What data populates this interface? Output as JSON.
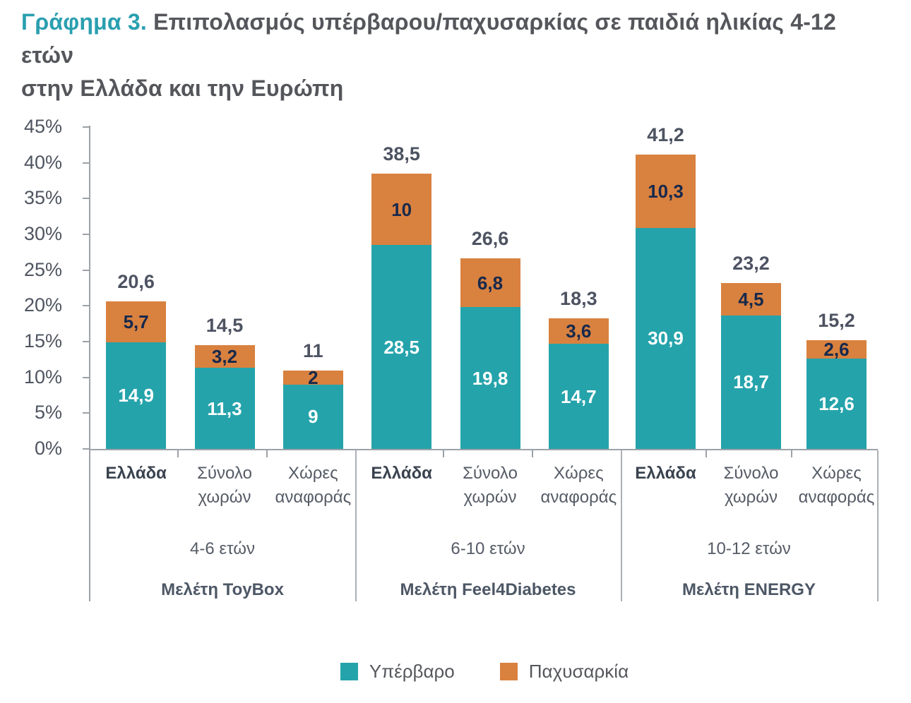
{
  "title": {
    "prefix": "Γράφημα 3.",
    "line1": "Επιπολασμός υπέρβαρου/παχυσαρκίας σε παιδιά ηλικίας 4-12 ετών",
    "line2": "στην Ελλάδα και την Ευρώπη"
  },
  "colors": {
    "overweight_teal": "#25a3ab",
    "obesity_orange": "#d9813f",
    "title_accent": "#2a9fb0",
    "title_text": "#54565b",
    "tick_text": "#4e5560",
    "total_label": "#4d5361",
    "label_on_orange": "#16294c",
    "label_on_teal": "#ffffff",
    "axis_gray": "#9ca2a8",
    "divider_gray": "#abb0b6"
  },
  "chart_data": {
    "type": "bar",
    "stacked": true,
    "title": "Γράφημα 3. Επιπολασμός υπέρβαρου/παχυσαρκίας σε παιδιά ηλικίας 4-12 ετών στην Ελλάδα και την Ευρώπη",
    "xlabel": "",
    "ylabel": "",
    "ylim": [
      0,
      45
    ],
    "y_ticks": [
      "0%",
      "5%",
      "10%",
      "15%",
      "20%",
      "25%",
      "30%",
      "35%",
      "40%",
      "45%"
    ],
    "grid": false,
    "legend_position": "bottom",
    "legend": [
      {
        "label": "Υπέρβαρο",
        "color": "#25a3ab"
      },
      {
        "label": "Παχυσαρκία",
        "color": "#d9813f"
      }
    ],
    "series_names": [
      "Υπέρβαρο",
      "Παχυσαρκία"
    ],
    "groups": [
      {
        "age": "4-6 ετών",
        "study": "Μελέτη ToyBox",
        "bars": [
          {
            "category": "Ελλάδα",
            "bold": true,
            "overweight": 14.9,
            "obesity": 5.7,
            "total": 20.6
          },
          {
            "category": "Σύνολο χωρών",
            "bold": false,
            "overweight": 11.3,
            "obesity": 3.2,
            "total": 14.5
          },
          {
            "category": "Χώρες αναφοράς",
            "bold": false,
            "overweight": 9,
            "obesity": 2,
            "total": 11
          }
        ]
      },
      {
        "age": "6-10 ετών",
        "study": "Μελέτη Feel4Diabetes",
        "bars": [
          {
            "category": "Ελλάδα",
            "bold": true,
            "overweight": 28.5,
            "obesity": 10,
            "total": 38.5
          },
          {
            "category": "Σύνολο χωρών",
            "bold": false,
            "overweight": 19.8,
            "obesity": 6.8,
            "total": 26.6
          },
          {
            "category": "Χώρες αναφοράς",
            "bold": false,
            "overweight": 14.7,
            "obesity": 3.6,
            "total": 18.3
          }
        ]
      },
      {
        "age": "10-12 ετών",
        "study": "Μελέτη ENERGY",
        "bars": [
          {
            "category": "Ελλάδα",
            "bold": true,
            "overweight": 30.9,
            "obesity": 10.3,
            "total": 41.2
          },
          {
            "category": "Σύνολο χωρών",
            "bold": false,
            "overweight": 18.7,
            "obesity": 4.5,
            "total": 23.2
          },
          {
            "category": "Χώρες αναφοράς",
            "bold": false,
            "overweight": 12.6,
            "obesity": 2.6,
            "total": 15.2
          }
        ]
      }
    ]
  }
}
